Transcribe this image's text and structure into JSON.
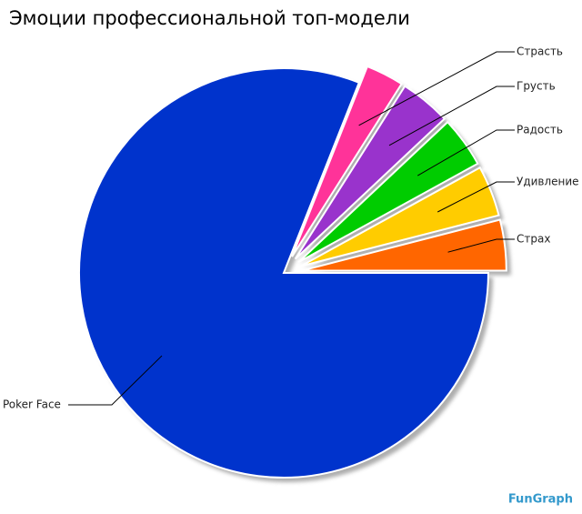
{
  "chart_data": {
    "type": "pie",
    "title": "Эмоции профессиональной топ-модели",
    "categories": [
      "Страх",
      "Удивление",
      "Радость",
      "Грусть",
      "Страсть",
      "Poker Face"
    ],
    "values": [
      4,
      4,
      4,
      4,
      3,
      81
    ],
    "colors": [
      "#ff6600",
      "#ffcc00",
      "#00cc00",
      "#9933cc",
      "#ff3399",
      "#0033cc"
    ],
    "exploded": [
      true,
      true,
      true,
      true,
      true,
      false
    ],
    "watermark": "FunGraph"
  }
}
